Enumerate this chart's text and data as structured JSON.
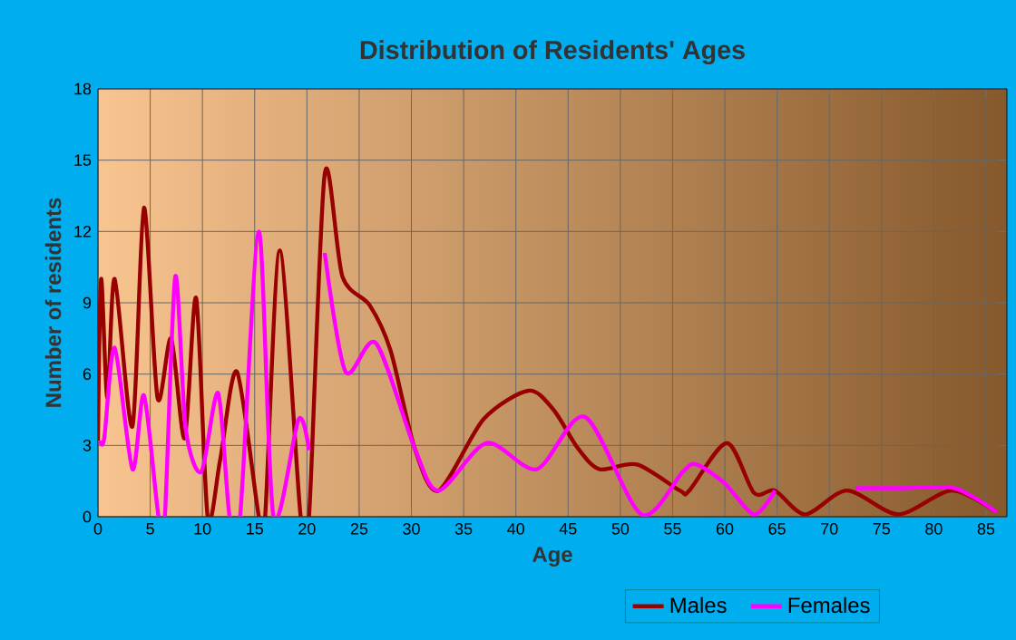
{
  "chart_data": {
    "type": "line",
    "title": "Distribution of Residents' Ages",
    "xlabel": "Age",
    "ylabel": "Number of residents",
    "xlim": [
      0,
      87
    ],
    "xticks": [
      0,
      5,
      10,
      15,
      20,
      25,
      30,
      35,
      40,
      45,
      50,
      55,
      60,
      65,
      70,
      75,
      80,
      85
    ],
    "ylim": [
      0,
      18
    ],
    "yticks": [
      0,
      3,
      6,
      9,
      12,
      15,
      18
    ],
    "grid": true,
    "legend": "bottom",
    "marker": "none",
    "line_style": "solid",
    "series": [
      {
        "name": "Males",
        "color": "#990000",
        "x": [
          0,
          0.3,
          0.9,
          1.6,
          3.3,
          4.4,
          5.7,
          7,
          8.3,
          9.4,
          10.5,
          11.7,
          13.3,
          15.4,
          16,
          17.4,
          19.4,
          20.2,
          21.7,
          23.4,
          26,
          28,
          30.3,
          32.6,
          36.9,
          41.2,
          43.6,
          45.9,
          48,
          51.6,
          55.7,
          56.6,
          60.2,
          62.8,
          64.8,
          67.7,
          71.7,
          76.6,
          81.7,
          86
        ],
        "values": [
          3.2,
          10,
          5,
          10,
          3.8,
          13,
          5,
          7.5,
          3.3,
          9.2,
          0,
          2.4,
          6.1,
          0,
          0,
          11.2,
          0,
          0,
          14.4,
          10.1,
          8.9,
          7,
          2.9,
          1.1,
          4.1,
          5.3,
          4.5,
          2.9,
          2,
          2.2,
          1.1,
          1.1,
          3.1,
          1,
          1.1,
          0.1,
          1.1,
          0.1,
          1.1,
          0.2
        ]
      },
      {
        "name": "Females",
        "color": "#ff00ff",
        "x": [
          0.2,
          0.6,
          1.6,
          3.3,
          4.4,
          5.8,
          6.4,
          7.4,
          8.4,
          9.9,
          11.5,
          12.6,
          13.6,
          15.4,
          16.8,
          19.2,
          20.2,
          21,
          21.7,
          23.7,
          26.6,
          30.3,
          32.6,
          37.2,
          42,
          46.6,
          52,
          56,
          57.3,
          60,
          62.8,
          64.8,
          68,
          72.5,
          77,
          82,
          86
        ],
        "values": [
          3.2,
          3.3,
          7.1,
          2,
          5.1,
          0,
          0,
          10.1,
          3.7,
          1.9,
          5.2,
          0,
          0,
          12,
          0,
          4.1,
          2.8,
          null,
          11.1,
          6.1,
          7.3,
          2.9,
          1.1,
          3.1,
          2,
          4.2,
          0.1,
          1.9,
          2.2,
          1.4,
          0.1,
          1.1,
          null,
          1.2,
          1.2,
          1.2,
          0.2
        ]
      }
    ]
  }
}
